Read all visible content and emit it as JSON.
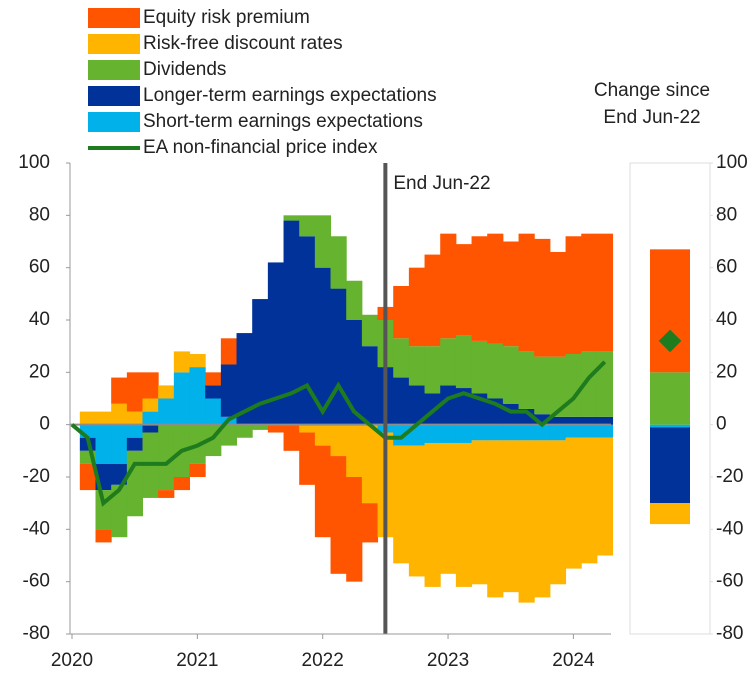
{
  "chart_data": [
    {
      "type": "stacked-area",
      "x": [
        2020,
        2020.125,
        2020.25,
        2020.375,
        2020.5,
        2020.625,
        2020.75,
        2020.875,
        2021,
        2021.125,
        2021.25,
        2021.375,
        2021.5,
        2021.625,
        2021.75,
        2021.875,
        2022,
        2022.125,
        2022.25,
        2022.375,
        2022.5,
        2022.625,
        2022.75,
        2022.875,
        2023,
        2023.125,
        2023.25,
        2023.375,
        2023.5,
        2023.625,
        2023.75,
        2023.875,
        2024,
        2024.125,
        2024.25
      ],
      "series": [
        {
          "name": "Short-term earnings expectations",
          "color": "#00b1ea",
          "values": [
            0,
            -5,
            -15,
            -15,
            -5,
            5,
            10,
            20,
            22,
            10,
            3,
            0,
            0,
            0,
            0,
            0,
            0,
            0,
            0,
            0,
            -3,
            -8,
            -8,
            -7,
            -7,
            -7,
            -6,
            -6,
            -6,
            -6,
            -6,
            -6,
            -5,
            -5,
            -5
          ]
        },
        {
          "name": "Longer-term earnings expectations",
          "color": "#003299",
          "values": [
            0,
            -5,
            -10,
            -8,
            -5,
            -3,
            0,
            0,
            0,
            5,
            20,
            35,
            48,
            62,
            78,
            72,
            60,
            52,
            40,
            30,
            22,
            18,
            15,
            12,
            15,
            14,
            12,
            10,
            8,
            6,
            4,
            3,
            3,
            3,
            3
          ]
        },
        {
          "name": "Dividends",
          "color": "#65b32e",
          "values": [
            0,
            -5,
            -15,
            -20,
            -25,
            -25,
            -25,
            -20,
            -15,
            -12,
            -8,
            -5,
            -2,
            0,
            2,
            8,
            20,
            20,
            15,
            12,
            18,
            15,
            15,
            18,
            18,
            20,
            20,
            21,
            22,
            22,
            22,
            23,
            24,
            25,
            25
          ]
        },
        {
          "name": "Risk-free discount rates",
          "color": "#ffb400",
          "values": [
            0,
            5,
            5,
            8,
            5,
            5,
            5,
            8,
            5,
            0,
            0,
            0,
            0,
            0,
            0,
            -3,
            -8,
            -12,
            -20,
            -30,
            -40,
            -45,
            -50,
            -55,
            -50,
            -55,
            -55,
            -60,
            -58,
            -62,
            -60,
            -55,
            -50,
            -48,
            -45
          ]
        },
        {
          "name": "Equity risk premium",
          "color": "#ff5500",
          "values": [
            0,
            -10,
            -5,
            10,
            15,
            10,
            -3,
            -5,
            -5,
            5,
            10,
            0,
            0,
            -3,
            -10,
            -20,
            -35,
            -45,
            -40,
            -15,
            5,
            20,
            30,
            35,
            40,
            35,
            40,
            42,
            40,
            45,
            45,
            40,
            45,
            45,
            45
          ]
        },
        {
          "name": "EA non-financial price index",
          "color": "#1e7b1e",
          "type": "line",
          "values": [
            0,
            -5,
            -30,
            -25,
            -15,
            -15,
            -15,
            -10,
            -8,
            -5,
            2,
            5,
            8,
            10,
            12,
            15,
            5,
            15,
            5,
            0,
            -5,
            -5,
            0,
            5,
            10,
            12,
            10,
            8,
            5,
            5,
            0,
            5,
            10,
            18,
            24
          ]
        }
      ],
      "legend_order": [
        4,
        3,
        2,
        1,
        0,
        5
      ],
      "xlim": [
        2020,
        2024.3
      ],
      "xticks": [
        2020,
        2021,
        2022,
        2023,
        2024
      ],
      "ylim": [
        -80,
        100
      ],
      "yticks": [
        -80,
        -60,
        -40,
        -20,
        0,
        20,
        40,
        60,
        80,
        100
      ],
      "annotations": [
        {
          "x": 2022.5,
          "text": "End Jun-22"
        }
      ]
    },
    {
      "type": "bar",
      "title": [
        "Change since",
        "End Jun-22"
      ],
      "series": [
        {
          "color": "#00b1ea",
          "values": [
            -1
          ]
        },
        {
          "color": "#003299",
          "values": [
            -29
          ]
        },
        {
          "color": "#65b32e",
          "values": [
            20
          ]
        },
        {
          "color": "#ffb400",
          "values": [
            -8
          ]
        },
        {
          "color": "#ff5500",
          "values": [
            47
          ]
        }
      ],
      "marker": {
        "color": "#1e7b1e",
        "value": 32
      },
      "ylim": [
        -80,
        100
      ],
      "yticks": [
        -80,
        -60,
        -40,
        -20,
        0,
        20,
        40,
        60,
        80,
        100
      ]
    }
  ]
}
